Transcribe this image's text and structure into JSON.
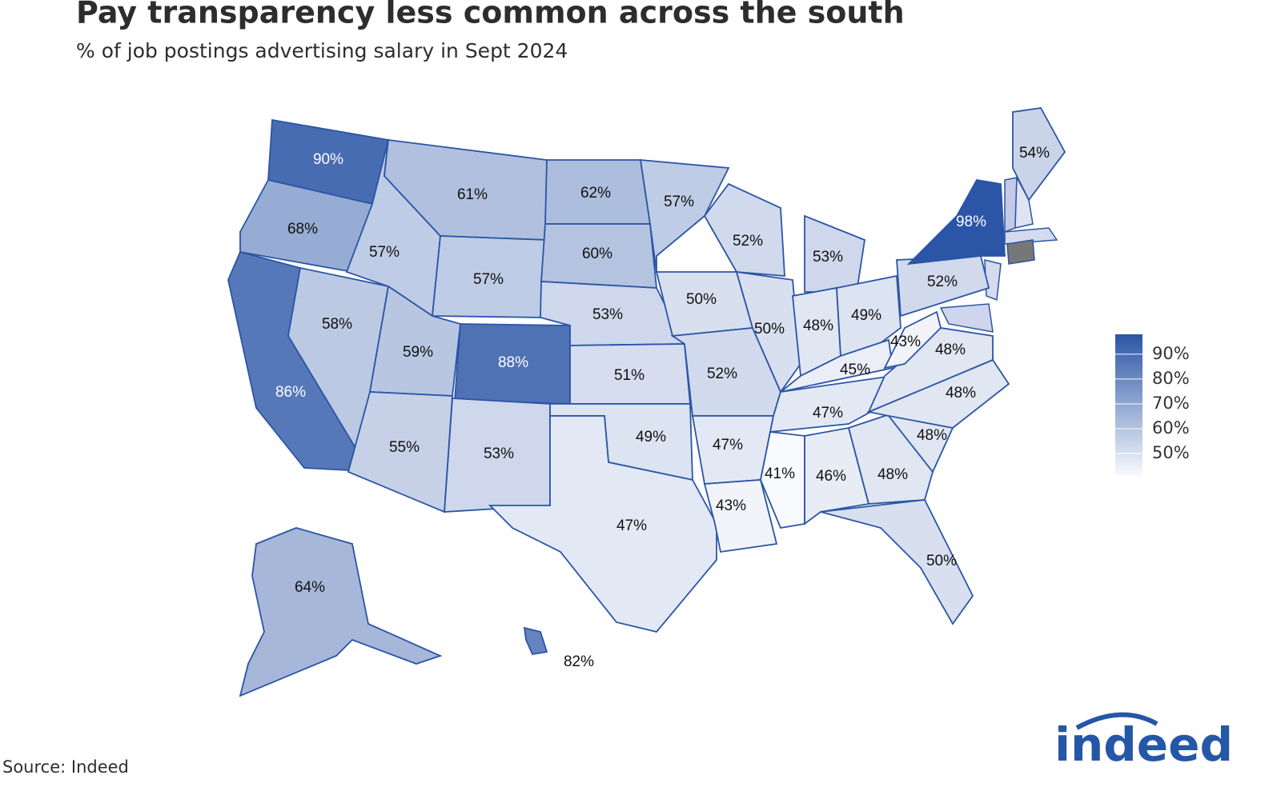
{
  "chart_data": {
    "type": "choropleth",
    "title": "Pay transparency less common across the south",
    "subtitle": "% of job postings advertising salary in Sept 2024",
    "source": "Source: Indeed",
    "logo": "indeed",
    "values": [
      90,
      68,
      86,
      58,
      57,
      61,
      57,
      59,
      88,
      55,
      53,
      62,
      60,
      53,
      51,
      49,
      47,
      57,
      50,
      52,
      47,
      43,
      52,
      50,
      53,
      48,
      49,
      45,
      47,
      41,
      46,
      48,
      50,
      48,
      48,
      48,
      43,
      52,
      98,
      54,
      64,
      82
    ],
    "value_labels": [
      "90%",
      "68%",
      "86%",
      "58%",
      "57%",
      "61%",
      "57%",
      "59%",
      "88%",
      "55%",
      "53%",
      "62%",
      "60%",
      "53%",
      "51%",
      "49%",
      "47%",
      "57%",
      "50%",
      "52%",
      "47%",
      "43%",
      "52%",
      "50%",
      "53%",
      "48%",
      "49%",
      "45%",
      "47%",
      "41%",
      "46%",
      "48%",
      "50%",
      "48%",
      "48%",
      "48%",
      "43%",
      "52%",
      "98%",
      "54%",
      "64%",
      "82%"
    ],
    "colors": [
      "#f9fafd",
      "#2b55a6"
    ],
    "clim": [
      41,
      98
    ],
    "cticks": [
      {
        "value": 50,
        "label": "50%"
      },
      {
        "value": 60,
        "label": "60%"
      },
      {
        "value": 70,
        "label": "70%"
      },
      {
        "value": 80,
        "label": "80%"
      },
      {
        "value": 90,
        "label": "90%"
      }
    ]
  }
}
